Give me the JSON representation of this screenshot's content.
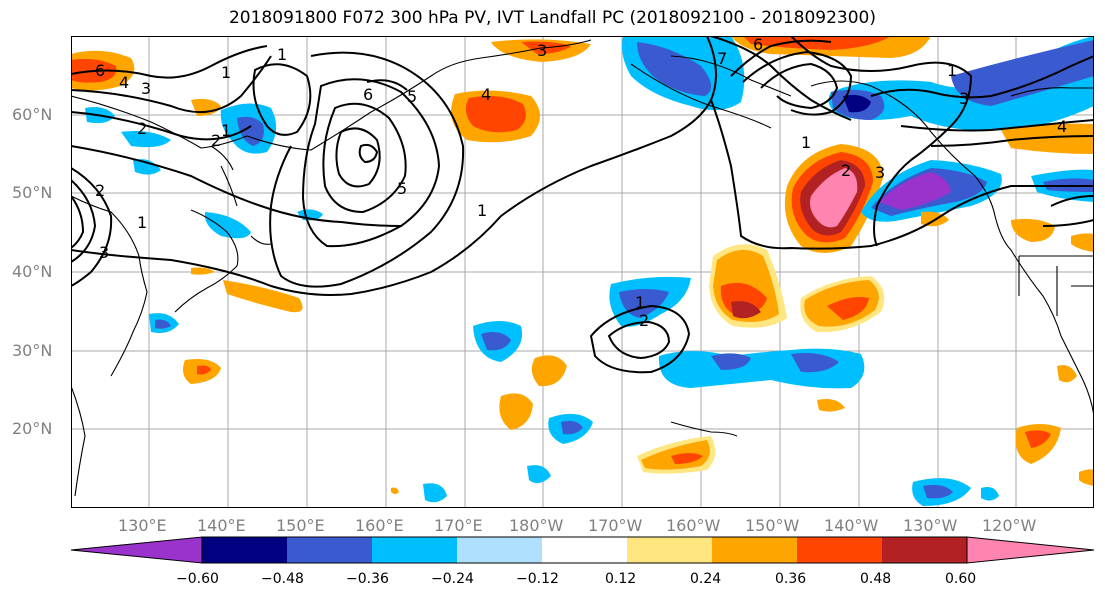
{
  "title": "2018091800 F072 300 hPa PV, IVT Landfall PC (2018092100 - 2018092300)",
  "lat_labels": [
    "60°N",
    "50°N",
    "40°N",
    "30°N",
    "20°N"
  ],
  "lon_labels": [
    "130°E",
    "140°E",
    "150°E",
    "160°E",
    "170°E",
    "180°W",
    "170°W",
    "160°W",
    "150°W",
    "140°W",
    "130°W",
    "120°W"
  ],
  "colorbar": {
    "tick_labels": [
      "−0.60",
      "−0.48",
      "−0.36",
      "−0.24",
      "−0.12",
      "0.12",
      "0.24",
      "0.36",
      "0.48",
      "0.60"
    ],
    "colors": [
      "#9933cc",
      "#000080",
      "#3a5bd0",
      "#00bfff",
      "#b0e0ff",
      "#ffffff",
      "#ffe680",
      "#ffa500",
      "#ff4500",
      "#b22222",
      "#ff85b0"
    ]
  },
  "contour_labels": [
    "6",
    "4",
    "3",
    "2",
    "1",
    "5",
    "6",
    "1",
    "5",
    "3",
    "2",
    "1",
    "1",
    "3",
    "7",
    "6",
    "4",
    "1",
    "3",
    "3",
    "2",
    "1",
    "1",
    "2",
    "4",
    "1",
    "2"
  ],
  "grid": true
}
